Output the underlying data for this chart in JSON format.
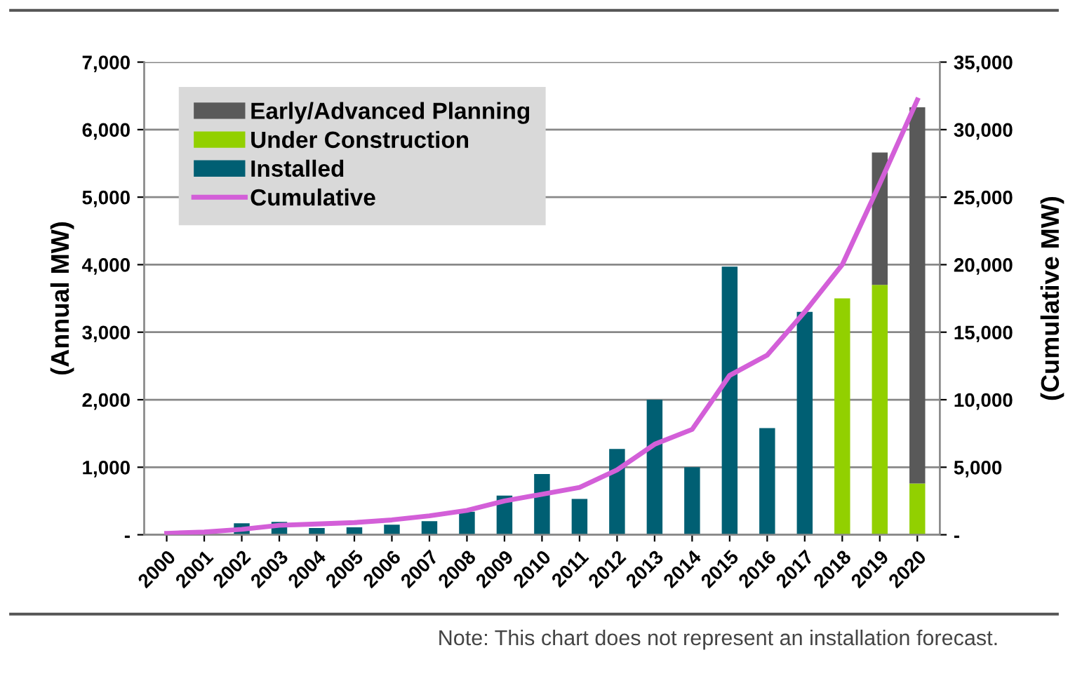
{
  "chart_data": {
    "type": "bar",
    "stacked": true,
    "ylabel": "(Annual MW)",
    "y2label": "(Cumulative MW)",
    "categories": [
      "2000",
      "2001",
      "2002",
      "2003",
      "2004",
      "2005",
      "2006",
      "2007",
      "2008",
      "2009",
      "2010",
      "2011",
      "2012",
      "2013",
      "2014",
      "2015",
      "2016",
      "2017",
      "2018",
      "2019",
      "2020"
    ],
    "series": [
      {
        "name": "Installed",
        "color": "#005f73",
        "values": [
          null,
          0,
          170,
          190,
          100,
          110,
          150,
          200,
          340,
          580,
          900,
          530,
          1270,
          2000,
          1000,
          3970,
          1580,
          3300,
          0,
          0,
          0
        ]
      },
      {
        "name": "Under Construction",
        "color": "#92d000",
        "values": [
          0,
          0,
          0,
          0,
          0,
          0,
          0,
          0,
          0,
          0,
          0,
          0,
          0,
          0,
          0,
          0,
          0,
          0,
          3500,
          3700,
          760
        ]
      },
      {
        "name": "Early/Advanced Planning",
        "color": "#595959",
        "values": [
          0,
          0,
          0,
          0,
          0,
          0,
          0,
          0,
          0,
          0,
          0,
          0,
          0,
          0,
          0,
          0,
          0,
          0,
          0,
          1960,
          5570
        ]
      },
      {
        "name": "Cumulative",
        "color": "#d35fd8",
        "type": "line",
        "axis": "y2",
        "values": [
          100,
          200,
          400,
          700,
          800,
          900,
          1100,
          1400,
          1800,
          2500,
          3000,
          3500,
          4800,
          6700,
          7800,
          11800,
          13300,
          16500,
          20000,
          26000,
          32200
        ]
      }
    ],
    "ylim": [
      0,
      7000
    ],
    "yticks": [
      {
        "value": 0,
        "label": "-"
      },
      {
        "value": 1000,
        "label": "1,000"
      },
      {
        "value": 2000,
        "label": "2,000"
      },
      {
        "value": 3000,
        "label": "3,000"
      },
      {
        "value": 4000,
        "label": "4,000"
      },
      {
        "value": 5000,
        "label": "5,000"
      },
      {
        "value": 6000,
        "label": "6,000"
      },
      {
        "value": 7000,
        "label": "7,000"
      }
    ],
    "y2lim": [
      0,
      35000
    ],
    "y2ticks": [
      {
        "value": 0,
        "label": "-"
      },
      {
        "value": 5000,
        "label": "5,000"
      },
      {
        "value": 10000,
        "label": "10,000"
      },
      {
        "value": 15000,
        "label": "15,000"
      },
      {
        "value": 20000,
        "label": "20,000"
      },
      {
        "value": 25000,
        "label": "25,000"
      },
      {
        "value": 30000,
        "label": "30,000"
      },
      {
        "value": 35000,
        "label": "35,000"
      }
    ],
    "grid": "y",
    "legend": "top left",
    "annotations": [
      "Note: This chart does not represent an installation forecast."
    ]
  }
}
